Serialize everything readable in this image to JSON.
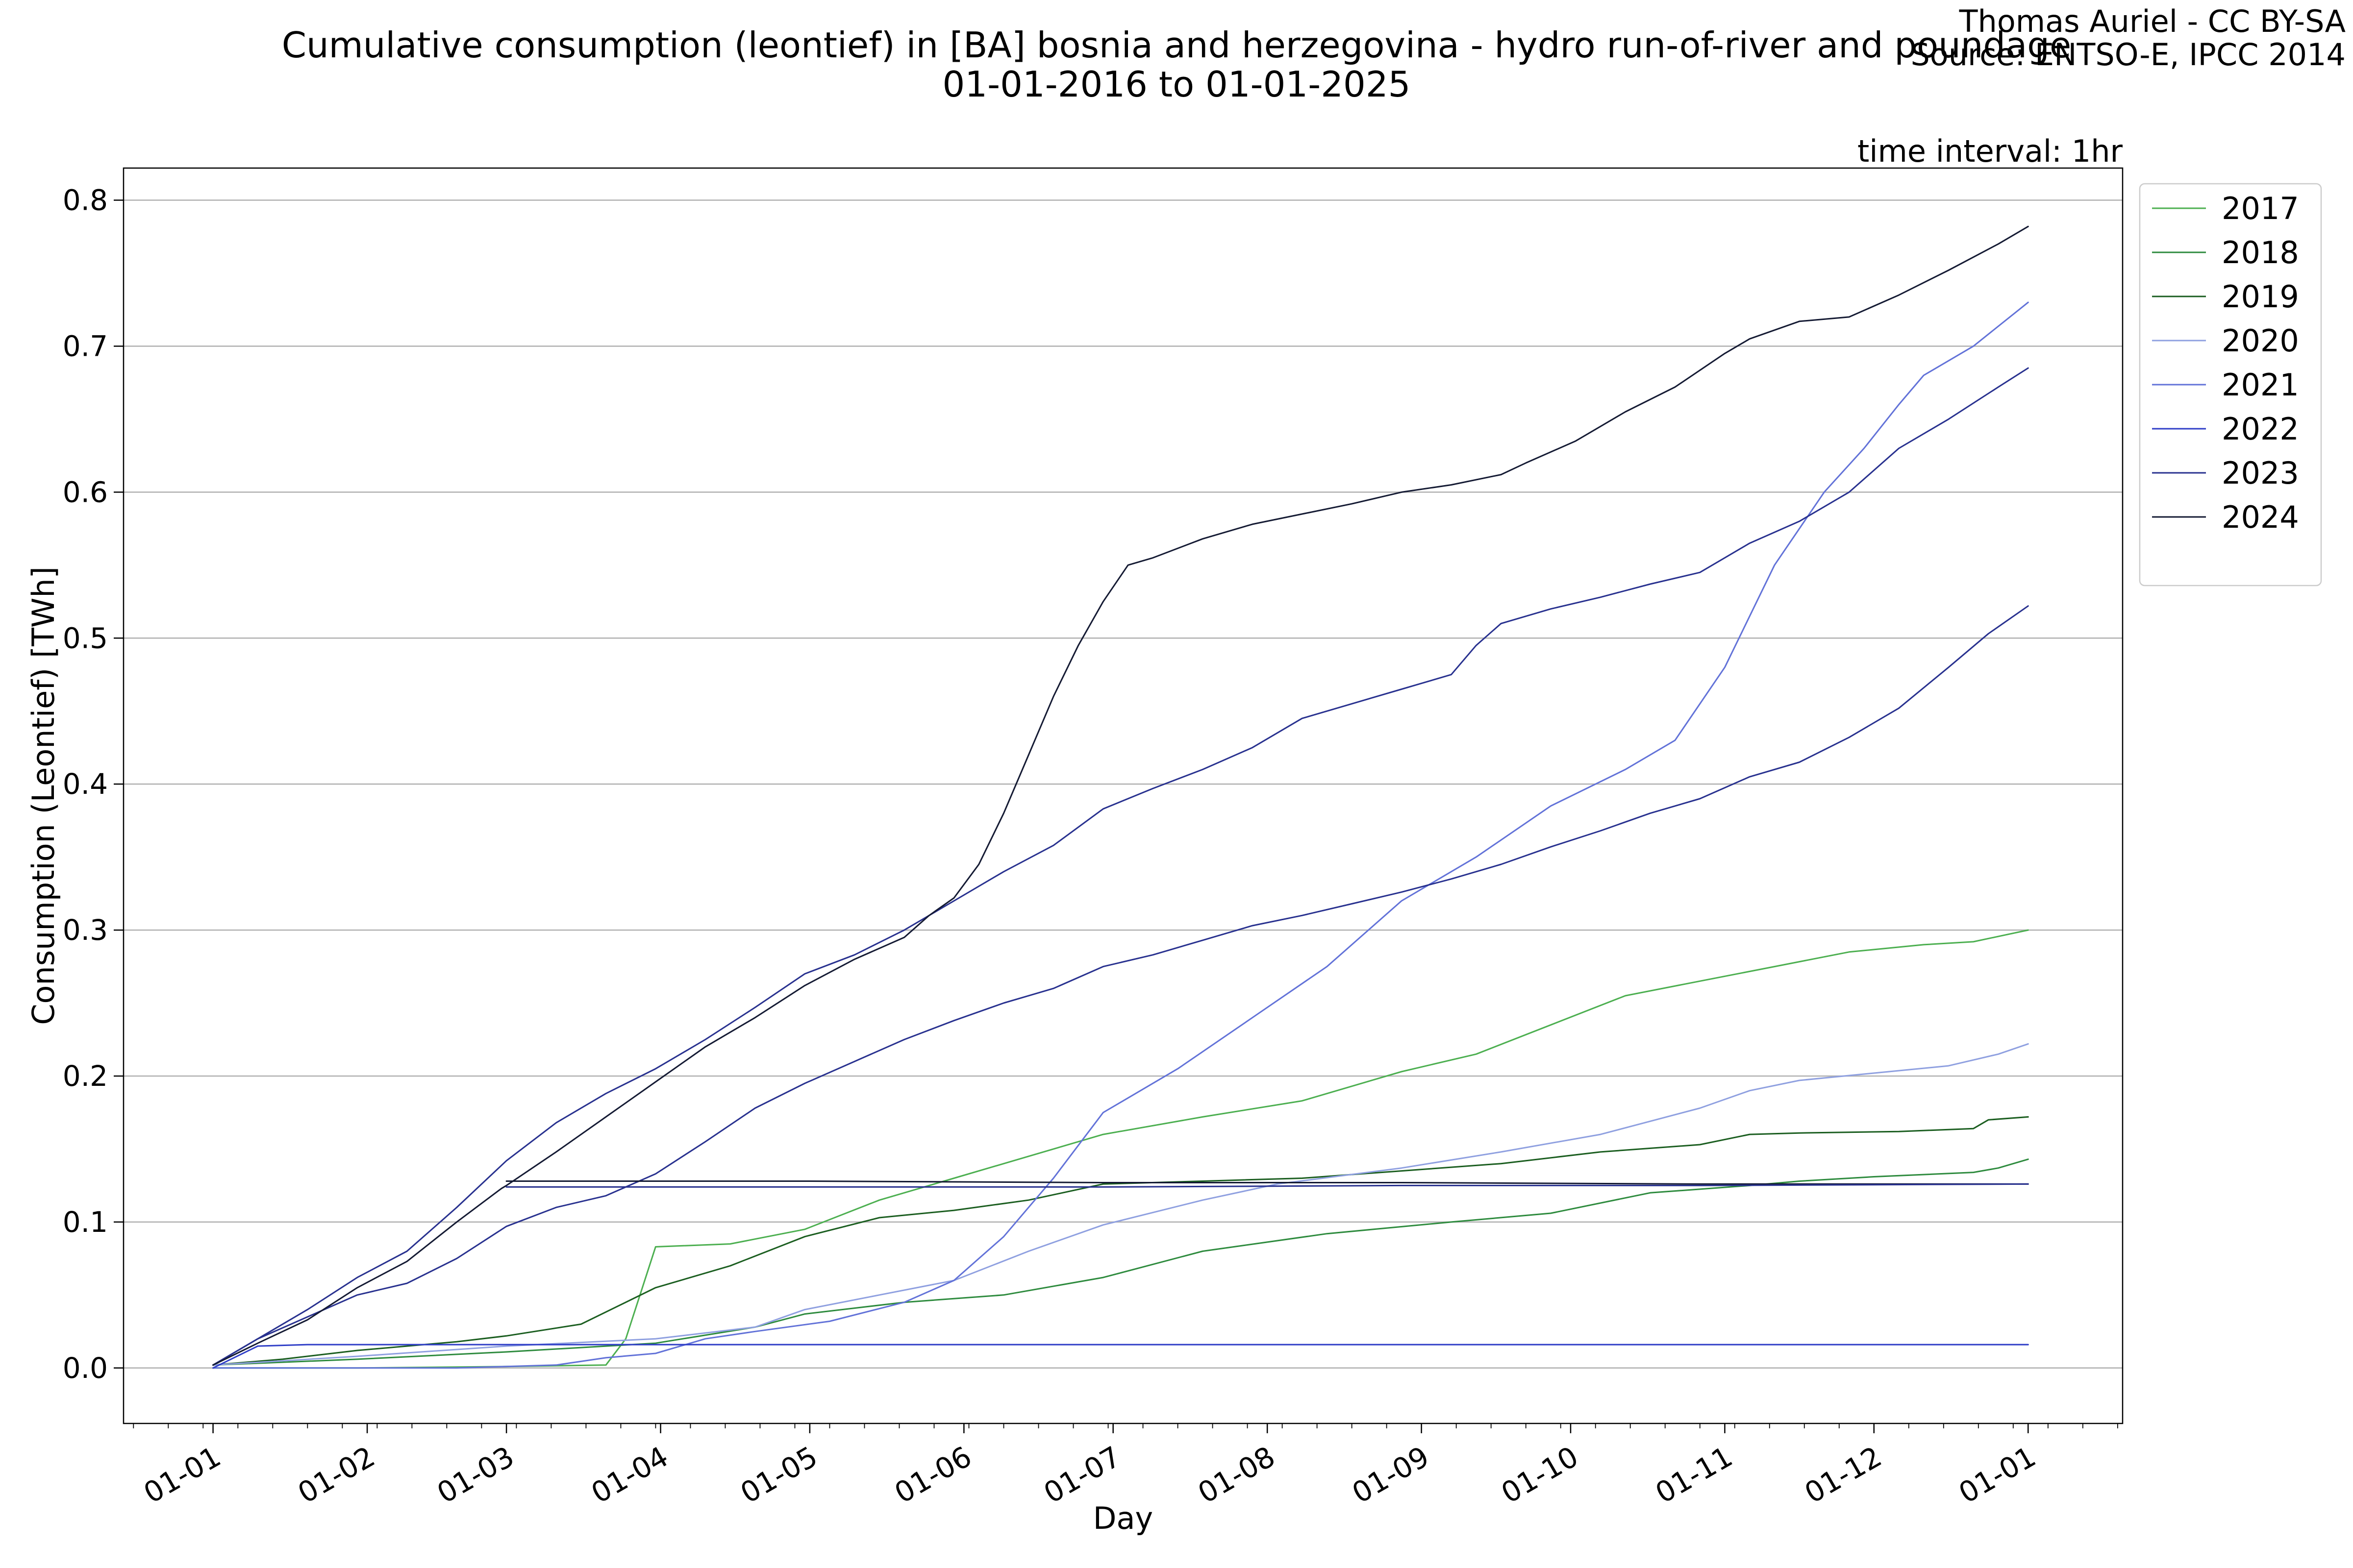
{
  "chart_data": {
    "type": "line",
    "title_line1": "Cumulative consumption (leontief) in [BA] bosnia and herzegovina - hydro run-of-river and poundage",
    "title_line2": "01-01-2016 to 01-01-2025",
    "credit_line1": "Thomas Auriel - CC BY-SA",
    "credit_line2": "Source: ENTSO-E, IPCC 2014",
    "interval_note": "time interval: 1hr",
    "xlabel": "Day",
    "ylabel": "Consumption (Leontief) [TWh]",
    "x_ticks": [
      {
        "day": 1,
        "label": "01-01"
      },
      {
        "day": 32,
        "label": "01-02"
      },
      {
        "day": 60,
        "label": "01-03"
      },
      {
        "day": 91,
        "label": "01-04"
      },
      {
        "day": 121,
        "label": "01-05"
      },
      {
        "day": 152,
        "label": "01-06"
      },
      {
        "day": 182,
        "label": "01-07"
      },
      {
        "day": 213,
        "label": "01-08"
      },
      {
        "day": 244,
        "label": "01-09"
      },
      {
        "day": 274,
        "label": "01-10"
      },
      {
        "day": 305,
        "label": "01-11"
      },
      {
        "day": 335,
        "label": "01-12"
      },
      {
        "day": 366,
        "label": "01-01"
      }
    ],
    "x_range": [
      -17,
      385
    ],
    "y_ticks": [
      "0.0",
      "0.1",
      "0.2",
      "0.3",
      "0.4",
      "0.5",
      "0.6",
      "0.7",
      "0.8"
    ],
    "ylim": [
      -0.038,
      0.822
    ],
    "grid": "horizontal",
    "legend_position": "outside-top-right",
    "series": [
      {
        "name": "2017",
        "color": "#4caf50",
        "points": [
          [
            1,
            0.0
          ],
          [
            30,
            0.0
          ],
          [
            60,
            0.001
          ],
          [
            80,
            0.002
          ],
          [
            84,
            0.02
          ],
          [
            90,
            0.083
          ],
          [
            105,
            0.085
          ],
          [
            120,
            0.095
          ],
          [
            135,
            0.115
          ],
          [
            150,
            0.13
          ],
          [
            165,
            0.145
          ],
          [
            180,
            0.16
          ],
          [
            200,
            0.172
          ],
          [
            220,
            0.183
          ],
          [
            240,
            0.203
          ],
          [
            255,
            0.215
          ],
          [
            270,
            0.235
          ],
          [
            285,
            0.255
          ],
          [
            300,
            0.265
          ],
          [
            315,
            0.275
          ],
          [
            330,
            0.285
          ],
          [
            345,
            0.29
          ],
          [
            355,
            0.292
          ],
          [
            366,
            0.3
          ]
        ]
      },
      {
        "name": "2018",
        "color": "#2e8b3e",
        "points": [
          [
            1,
            0.002
          ],
          [
            30,
            0.006
          ],
          [
            60,
            0.011
          ],
          [
            90,
            0.017
          ],
          [
            110,
            0.028
          ],
          [
            120,
            0.037
          ],
          [
            140,
            0.045
          ],
          [
            160,
            0.05
          ],
          [
            180,
            0.062
          ],
          [
            200,
            0.08
          ],
          [
            225,
            0.092
          ],
          [
            250,
            0.1
          ],
          [
            270,
            0.106
          ],
          [
            290,
            0.12
          ],
          [
            310,
            0.125
          ],
          [
            320,
            0.128
          ],
          [
            335,
            0.131
          ],
          [
            355,
            0.134
          ],
          [
            360,
            0.137
          ],
          [
            366,
            0.143
          ]
        ]
      },
      {
        "name": "2019",
        "color": "#1b5e20",
        "points": [
          [
            1,
            0.002
          ],
          [
            15,
            0.006
          ],
          [
            30,
            0.012
          ],
          [
            50,
            0.018
          ],
          [
            60,
            0.022
          ],
          [
            75,
            0.03
          ],
          [
            90,
            0.055
          ],
          [
            105,
            0.07
          ],
          [
            120,
            0.09
          ],
          [
            135,
            0.103
          ],
          [
            150,
            0.108
          ],
          [
            165,
            0.115
          ],
          [
            180,
            0.126
          ],
          [
            200,
            0.128
          ],
          [
            220,
            0.13
          ],
          [
            240,
            0.135
          ],
          [
            260,
            0.14
          ],
          [
            280,
            0.148
          ],
          [
            300,
            0.153
          ],
          [
            310,
            0.16
          ],
          [
            320,
            0.161
          ],
          [
            340,
            0.162
          ],
          [
            355,
            0.164
          ],
          [
            358,
            0.17
          ],
          [
            366,
            0.172
          ]
        ]
      },
      {
        "name": "2020",
        "color": "#8fa0e0",
        "points": [
          [
            1,
            0.002
          ],
          [
            30,
            0.008
          ],
          [
            60,
            0.015
          ],
          [
            90,
            0.02
          ],
          [
            110,
            0.028
          ],
          [
            120,
            0.04
          ],
          [
            135,
            0.05
          ],
          [
            150,
            0.06
          ],
          [
            165,
            0.08
          ],
          [
            180,
            0.098
          ],
          [
            200,
            0.115
          ],
          [
            215,
            0.126
          ],
          [
            240,
            0.137
          ],
          [
            260,
            0.148
          ],
          [
            280,
            0.16
          ],
          [
            300,
            0.178
          ],
          [
            310,
            0.19
          ],
          [
            320,
            0.197
          ],
          [
            335,
            0.202
          ],
          [
            350,
            0.207
          ],
          [
            360,
            0.215
          ],
          [
            366,
            0.222
          ]
        ]
      },
      {
        "name": "2021",
        "color": "#6272d8",
        "points": [
          [
            1,
            0.0
          ],
          [
            50,
            0.0
          ],
          [
            70,
            0.002
          ],
          [
            80,
            0.007
          ],
          [
            90,
            0.01
          ],
          [
            100,
            0.02
          ],
          [
            110,
            0.025
          ],
          [
            125,
            0.032
          ],
          [
            140,
            0.045
          ],
          [
            150,
            0.06
          ],
          [
            160,
            0.09
          ],
          [
            170,
            0.13
          ],
          [
            180,
            0.175
          ],
          [
            195,
            0.205
          ],
          [
            210,
            0.24
          ],
          [
            225,
            0.275
          ],
          [
            240,
            0.32
          ],
          [
            255,
            0.35
          ],
          [
            270,
            0.385
          ],
          [
            285,
            0.41
          ],
          [
            295,
            0.43
          ],
          [
            305,
            0.48
          ],
          [
            315,
            0.55
          ],
          [
            325,
            0.6
          ],
          [
            333,
            0.63
          ],
          [
            340,
            0.66
          ],
          [
            345,
            0.68
          ],
          [
            355,
            0.7
          ],
          [
            366,
            0.73
          ]
        ]
      },
      {
        "name": "2022",
        "color": "#2f3ec7",
        "points": [
          [
            1,
            0.0
          ],
          [
            10,
            0.015
          ],
          [
            20,
            0.016
          ],
          [
            60,
            0.016
          ],
          [
            120,
            0.016
          ],
          [
            180,
            0.016
          ],
          [
            240,
            0.016
          ],
          [
            300,
            0.016
          ],
          [
            366,
            0.016
          ]
        ]
      },
      {
        "name": "2023",
        "color": "#28318f",
        "points": [
          [
            1,
            0.002
          ],
          [
            10,
            0.02
          ],
          [
            20,
            0.035
          ],
          [
            30,
            0.05
          ],
          [
            40,
            0.058
          ],
          [
            50,
            0.075
          ],
          [
            60,
            0.097
          ],
          [
            70,
            0.11
          ],
          [
            80,
            0.118
          ],
          [
            90,
            0.133
          ],
          [
            100,
            0.155
          ],
          [
            110,
            0.178
          ],
          [
            120,
            0.195
          ],
          [
            130,
            0.21
          ],
          [
            140,
            0.225
          ],
          [
            150,
            0.238
          ],
          [
            160,
            0.25
          ],
          [
            170,
            0.26
          ],
          [
            180,
            0.275
          ],
          [
            190,
            0.283
          ],
          [
            200,
            0.293
          ],
          [
            210,
            0.303
          ],
          [
            220,
            0.31
          ],
          [
            230,
            0.318
          ],
          [
            240,
            0.326
          ],
          [
            250,
            0.335
          ],
          [
            260,
            0.345
          ],
          [
            270,
            0.357
          ],
          [
            280,
            0.368
          ],
          [
            290,
            0.38
          ],
          [
            300,
            0.39
          ],
          [
            310,
            0.405
          ],
          [
            320,
            0.415
          ],
          [
            330,
            0.432
          ],
          [
            340,
            0.452
          ],
          [
            350,
            0.48
          ],
          [
            358,
            0.503
          ],
          [
            366,
            0.522
          ]
        ]
      },
      {
        "name": "2023b",
        "color": "#28318f",
        "points": [
          [
            1,
            0.002
          ],
          [
            10,
            0.02
          ],
          [
            20,
            0.04
          ],
          [
            30,
            0.062
          ],
          [
            40,
            0.08
          ],
          [
            50,
            0.11
          ],
          [
            60,
            0.142
          ],
          [
            70,
            0.168
          ],
          [
            80,
            0.188
          ],
          [
            90,
            0.205
          ],
          [
            100,
            0.225
          ],
          [
            110,
            0.247
          ],
          [
            120,
            0.27
          ],
          [
            130,
            0.283
          ],
          [
            140,
            0.3
          ],
          [
            150,
            0.32
          ],
          [
            160,
            0.34
          ],
          [
            170,
            0.358
          ],
          [
            180,
            0.383
          ],
          [
            190,
            0.397
          ],
          [
            200,
            0.41
          ],
          [
            210,
            0.425
          ],
          [
            220,
            0.445
          ],
          [
            230,
            0.455
          ],
          [
            240,
            0.465
          ],
          [
            250,
            0.475
          ],
          [
            255,
            0.495
          ],
          [
            260,
            0.51
          ],
          [
            270,
            0.52
          ],
          [
            280,
            0.528
          ],
          [
            290,
            0.537
          ],
          [
            300,
            0.545
          ],
          [
            310,
            0.565
          ],
          [
            320,
            0.58
          ],
          [
            330,
            0.6
          ],
          [
            340,
            0.63
          ],
          [
            350,
            0.65
          ],
          [
            360,
            0.672
          ],
          [
            366,
            0.685
          ]
        ]
      },
      {
        "name": "2024",
        "color": "#141a33",
        "points": [
          [
            1,
            0.002
          ],
          [
            10,
            0.017
          ],
          [
            20,
            0.033
          ],
          [
            30,
            0.055
          ],
          [
            40,
            0.073
          ],
          [
            50,
            0.1
          ],
          [
            59,
            0.123
          ],
          [
            60,
            0.125
          ],
          [
            70,
            0.148
          ],
          [
            80,
            0.172
          ],
          [
            90,
            0.196
          ],
          [
            100,
            0.22
          ],
          [
            110,
            0.24
          ],
          [
            120,
            0.262
          ],
          [
            130,
            0.28
          ],
          [
            140,
            0.295
          ],
          [
            145,
            0.31
          ],
          [
            150,
            0.322
          ],
          [
            155,
            0.345
          ],
          [
            160,
            0.38
          ],
          [
            165,
            0.42
          ],
          [
            170,
            0.46
          ],
          [
            175,
            0.495
          ],
          [
            180,
            0.525
          ],
          [
            185,
            0.55
          ],
          [
            190,
            0.555
          ],
          [
            200,
            0.568
          ],
          [
            210,
            0.578
          ],
          [
            220,
            0.585
          ],
          [
            230,
            0.592
          ],
          [
            240,
            0.6
          ],
          [
            250,
            0.605
          ],
          [
            260,
            0.612
          ],
          [
            265,
            0.62
          ],
          [
            275,
            0.635
          ],
          [
            285,
            0.655
          ],
          [
            295,
            0.672
          ],
          [
            305,
            0.695
          ],
          [
            310,
            0.705
          ],
          [
            320,
            0.717
          ],
          [
            330,
            0.72
          ],
          [
            340,
            0.735
          ],
          [
            350,
            0.752
          ],
          [
            360,
            0.77
          ],
          [
            366,
            0.782
          ]
        ]
      },
      {
        "name": "2024b",
        "color": "#141a33",
        "points": [
          [
            60,
            0.128
          ],
          [
            120,
            0.128
          ],
          [
            180,
            0.127
          ],
          [
            240,
            0.127
          ],
          [
            300,
            0.126
          ],
          [
            366,
            0.126
          ]
        ]
      },
      {
        "name": "2023c",
        "color": "#28318f",
        "points": [
          [
            60,
            0.124
          ],
          [
            120,
            0.124
          ],
          [
            180,
            0.124
          ],
          [
            240,
            0.125
          ],
          [
            300,
            0.125
          ],
          [
            366,
            0.126
          ]
        ]
      }
    ],
    "legend": [
      {
        "label": "2017",
        "color": "#4caf50"
      },
      {
        "label": "2018",
        "color": "#2e8b3e"
      },
      {
        "label": "2019",
        "color": "#1b5e20"
      },
      {
        "label": "2020",
        "color": "#8fa0e0"
      },
      {
        "label": "2021",
        "color": "#6272d8"
      },
      {
        "label": "2022",
        "color": "#2f3ec7"
      },
      {
        "label": "2023",
        "color": "#28318f"
      },
      {
        "label": "2024",
        "color": "#141a33"
      }
    ]
  }
}
